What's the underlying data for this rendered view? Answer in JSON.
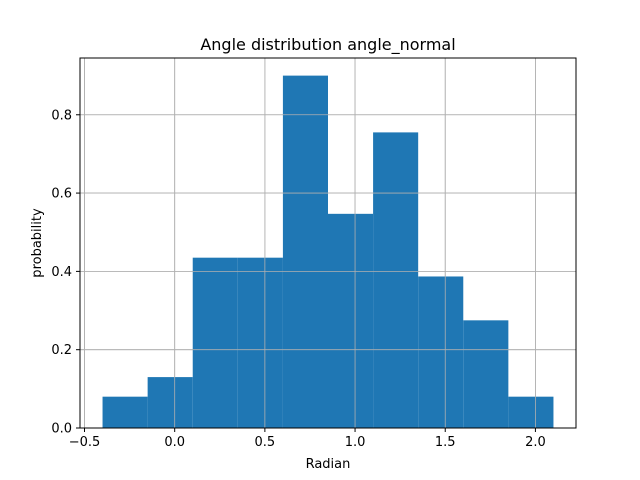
{
  "chart_data": {
    "type": "bar",
    "title": "Angle distribution angle_normal",
    "xlabel": "Radian",
    "ylabel": "probability",
    "bin_edges": [
      -0.4,
      -0.15,
      0.1,
      0.35,
      0.6,
      0.85,
      1.1,
      1.35,
      1.6,
      1.85,
      2.1
    ],
    "values": [
      0.08,
      0.13,
      0.435,
      0.435,
      0.9,
      0.547,
      0.755,
      0.387,
      0.275,
      0.08
    ],
    "xlim": [
      -0.525,
      2.225
    ],
    "ylim": [
      0.0,
      0.945
    ],
    "xticks": [
      -0.5,
      0.0,
      0.5,
      1.0,
      1.5,
      2.0
    ],
    "xtick_labels": [
      "−0.5",
      "0.0",
      "0.5",
      "1.0",
      "1.5",
      "2.0"
    ],
    "yticks": [
      0.0,
      0.2,
      0.4,
      0.6,
      0.8
    ],
    "ytick_labels": [
      "0.0",
      "0.2",
      "0.4",
      "0.6",
      "0.8"
    ],
    "grid": true,
    "bar_color": "#1f77b4",
    "grid_color": "#b0b0b0"
  }
}
